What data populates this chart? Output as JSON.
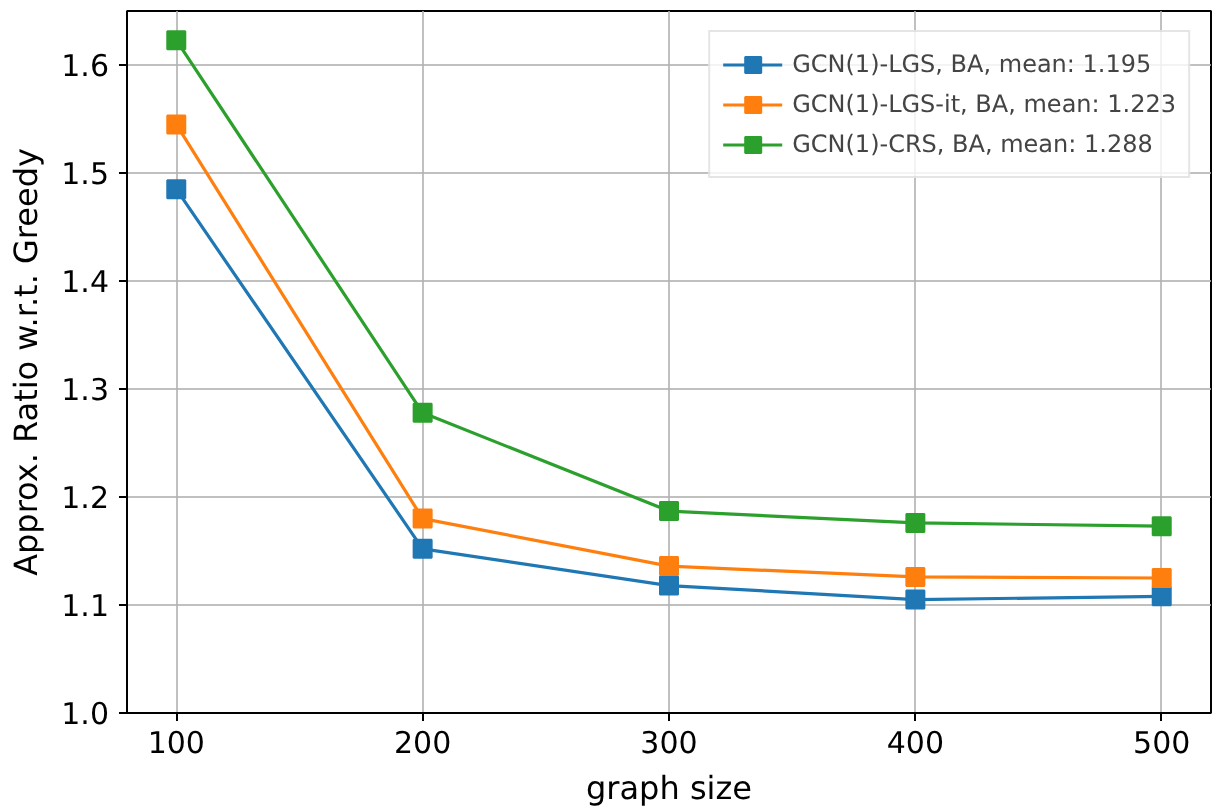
{
  "chart_data": {
    "type": "line",
    "xlabel": "graph size",
    "ylabel": "Approx. Ratio w.r.t. Greedy",
    "x": [
      100,
      200,
      300,
      400,
      500
    ],
    "series": [
      {
        "name": "GCN(1)-LGS, BA, mean: 1.195",
        "color": "#1f77b4",
        "values": [
          1.485,
          1.152,
          1.118,
          1.105,
          1.108
        ]
      },
      {
        "name": "GCN(1)-LGS-it, BA, mean: 1.223",
        "color": "#ff7f0e",
        "values": [
          1.545,
          1.18,
          1.136,
          1.126,
          1.125
        ]
      },
      {
        "name": "GCN(1)-CRS, BA, mean: 1.288",
        "color": "#2ca02c",
        "values": [
          1.623,
          1.278,
          1.187,
          1.176,
          1.173
        ]
      }
    ],
    "xlim": [
      80,
      520
    ],
    "ylim": [
      1.0,
      1.65
    ],
    "xticks": [
      100,
      200,
      300,
      400,
      500
    ],
    "yticks": [
      {
        "value": 1.0,
        "label": "1.0"
      },
      1.1,
      1.2,
      1.3,
      1.4,
      1.5,
      1.6
    ],
    "grid": true,
    "legend": "top right",
    "marker": "square",
    "line_style": "solid"
  }
}
